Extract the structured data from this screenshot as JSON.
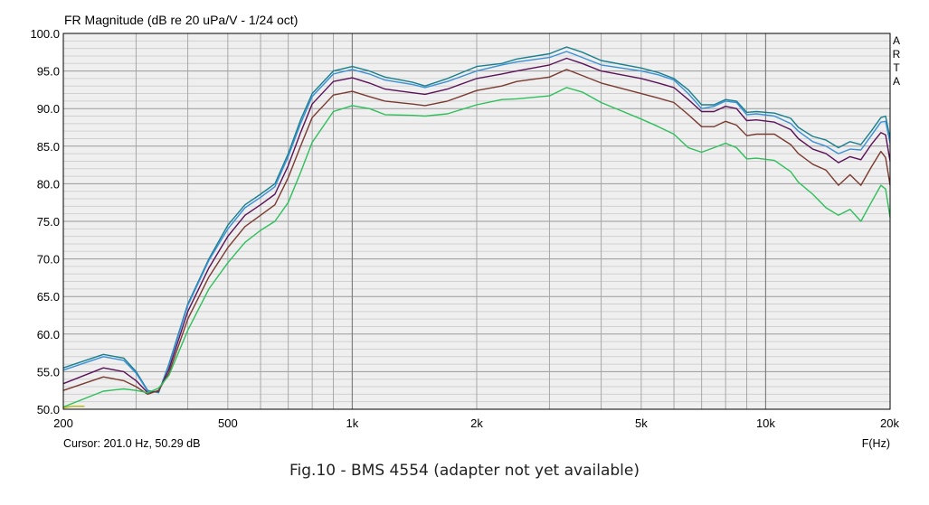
{
  "chart_data": {
    "type": "line",
    "title": "FR Magnitude (dB re 20 uPa/V - 1/24 oct)",
    "xlabel": "F(Hz)",
    "x_scale": "log",
    "xlim": [
      200,
      20000
    ],
    "ylim": [
      50,
      100
    ],
    "x_ticks": [
      {
        "value": 200,
        "label": "200"
      },
      {
        "value": 500,
        "label": "500"
      },
      {
        "value": 1000,
        "label": "1k"
      },
      {
        "value": 2000,
        "label": "2k"
      },
      {
        "value": 5000,
        "label": "5k"
      },
      {
        "value": 10000,
        "label": "10k"
      },
      {
        "value": 20000,
        "label": "20k"
      }
    ],
    "y_ticks": [
      "50.0",
      "55.0",
      "60.0",
      "65.0",
      "70.0",
      "75.0",
      "80.0",
      "85.0",
      "90.0",
      "95.0",
      "100.0"
    ],
    "y_tick_values": [
      50,
      55,
      60,
      65,
      70,
      75,
      80,
      85,
      90,
      95,
      100
    ],
    "grid": true,
    "cursor_text": "Cursor: 201.0 Hz, 50.29 dB",
    "watermark": [
      "A",
      "R",
      "T",
      "A"
    ],
    "caption": "Fig.10 - BMS 4554 (adapter not yet available)",
    "series": [
      {
        "color": "#1a7f8c",
        "points": [
          [
            200,
            55.5
          ],
          [
            250,
            57.3
          ],
          [
            280,
            56.8
          ],
          [
            300,
            55
          ],
          [
            320,
            52.5
          ],
          [
            340,
            52.2
          ],
          [
            360,
            56
          ],
          [
            400,
            64
          ],
          [
            450,
            70
          ],
          [
            500,
            74.5
          ],
          [
            550,
            77.2
          ],
          [
            600,
            78.6
          ],
          [
            650,
            80
          ],
          [
            700,
            84
          ],
          [
            750,
            88.5
          ],
          [
            800,
            92
          ],
          [
            900,
            95
          ],
          [
            1000,
            95.6
          ],
          [
            1100,
            95
          ],
          [
            1200,
            94.2
          ],
          [
            1400,
            93.5
          ],
          [
            1500,
            93
          ],
          [
            1700,
            94
          ],
          [
            2000,
            95.6
          ],
          [
            2300,
            96
          ],
          [
            2500,
            96.6
          ],
          [
            3000,
            97.3
          ],
          [
            3300,
            98.2
          ],
          [
            3600,
            97.5
          ],
          [
            4000,
            96.4
          ],
          [
            5000,
            95.4
          ],
          [
            5500,
            94.8
          ],
          [
            6000,
            94
          ],
          [
            6500,
            92.5
          ],
          [
            7000,
            90.5
          ],
          [
            7500,
            90.5
          ],
          [
            8000,
            91.2
          ],
          [
            8500,
            91
          ],
          [
            9000,
            89.5
          ],
          [
            9500,
            89.6
          ],
          [
            10500,
            89.4
          ],
          [
            11500,
            88.7
          ],
          [
            12000,
            87.5
          ],
          [
            13000,
            86.3
          ],
          [
            14000,
            85.8
          ],
          [
            15000,
            84.8
          ],
          [
            16000,
            85.6
          ],
          [
            17000,
            85.2
          ],
          [
            18000,
            87
          ],
          [
            19000,
            88.8
          ],
          [
            19500,
            89
          ],
          [
            20000,
            86
          ]
        ]
      },
      {
        "color": "#3a8fd8",
        "points": [
          [
            200,
            55.2
          ],
          [
            250,
            57
          ],
          [
            280,
            56.5
          ],
          [
            300,
            54.8
          ],
          [
            320,
            52.4
          ],
          [
            340,
            52.3
          ],
          [
            360,
            55.8
          ],
          [
            400,
            63.8
          ],
          [
            450,
            69.8
          ],
          [
            500,
            74
          ],
          [
            550,
            76.8
          ],
          [
            600,
            78.2
          ],
          [
            650,
            79.6
          ],
          [
            700,
            83.6
          ],
          [
            750,
            88
          ],
          [
            800,
            91.6
          ],
          [
            900,
            94.6
          ],
          [
            1000,
            95.2
          ],
          [
            1100,
            94.6
          ],
          [
            1200,
            93.8
          ],
          [
            1400,
            93.2
          ],
          [
            1500,
            92.8
          ],
          [
            1700,
            93.6
          ],
          [
            2000,
            95
          ],
          [
            2300,
            95.8
          ],
          [
            2500,
            96.2
          ],
          [
            3000,
            96.8
          ],
          [
            3300,
            97.6
          ],
          [
            3600,
            96.8
          ],
          [
            4000,
            95.8
          ],
          [
            5000,
            95
          ],
          [
            5500,
            94.5
          ],
          [
            6000,
            93.8
          ],
          [
            6500,
            92
          ],
          [
            7000,
            90
          ],
          [
            7500,
            90.3
          ],
          [
            8000,
            91
          ],
          [
            8500,
            90.8
          ],
          [
            9000,
            89.2
          ],
          [
            9500,
            89.3
          ],
          [
            10500,
            89
          ],
          [
            11500,
            88
          ],
          [
            12000,
            87
          ],
          [
            13000,
            85.6
          ],
          [
            14000,
            85
          ],
          [
            15000,
            84
          ],
          [
            16000,
            84.6
          ],
          [
            17000,
            84.5
          ],
          [
            18000,
            86.4
          ],
          [
            19000,
            88.2
          ],
          [
            19500,
            88.3
          ],
          [
            20000,
            85.4
          ]
        ]
      },
      {
        "color": "#5a1258",
        "points": [
          [
            200,
            53.4
          ],
          [
            250,
            55.5
          ],
          [
            280,
            55
          ],
          [
            300,
            53.8
          ],
          [
            320,
            52.2
          ],
          [
            340,
            52.4
          ],
          [
            360,
            55.3
          ],
          [
            400,
            63
          ],
          [
            450,
            68.8
          ],
          [
            500,
            73
          ],
          [
            550,
            75.8
          ],
          [
            600,
            77.2
          ],
          [
            650,
            78.6
          ],
          [
            700,
            82.4
          ],
          [
            750,
            86.8
          ],
          [
            800,
            90.6
          ],
          [
            900,
            93.6
          ],
          [
            1000,
            94.1
          ],
          [
            1100,
            93.4
          ],
          [
            1200,
            92.6
          ],
          [
            1400,
            92.1
          ],
          [
            1500,
            91.9
          ],
          [
            1700,
            92.6
          ],
          [
            2000,
            94
          ],
          [
            2300,
            94.6
          ],
          [
            2500,
            95
          ],
          [
            3000,
            95.8
          ],
          [
            3300,
            96.7
          ],
          [
            3600,
            96
          ],
          [
            4000,
            95
          ],
          [
            5000,
            94
          ],
          [
            5500,
            93.4
          ],
          [
            6000,
            92.8
          ],
          [
            6500,
            91.2
          ],
          [
            7000,
            89.6
          ],
          [
            7500,
            89.6
          ],
          [
            8000,
            90.3
          ],
          [
            8500,
            90
          ],
          [
            9000,
            88.4
          ],
          [
            9500,
            88.5
          ],
          [
            10500,
            88.2
          ],
          [
            11500,
            87.2
          ],
          [
            12000,
            86
          ],
          [
            13000,
            84.6
          ],
          [
            14000,
            84
          ],
          [
            15000,
            82.8
          ],
          [
            16000,
            83.6
          ],
          [
            17000,
            83.2
          ],
          [
            18000,
            85.2
          ],
          [
            19000,
            86.8
          ],
          [
            19500,
            86.5
          ],
          [
            20000,
            83
          ]
        ]
      },
      {
        "color": "#7a3a30",
        "points": [
          [
            200,
            52.5
          ],
          [
            250,
            54.3
          ],
          [
            280,
            53.8
          ],
          [
            300,
            53
          ],
          [
            320,
            52
          ],
          [
            340,
            52.5
          ],
          [
            360,
            54.8
          ],
          [
            400,
            62
          ],
          [
            450,
            67.6
          ],
          [
            500,
            71.5
          ],
          [
            550,
            74.3
          ],
          [
            600,
            75.8
          ],
          [
            650,
            77.2
          ],
          [
            700,
            80.8
          ],
          [
            750,
            85
          ],
          [
            800,
            88.8
          ],
          [
            900,
            91.8
          ],
          [
            1000,
            92.3
          ],
          [
            1100,
            91.6
          ],
          [
            1200,
            91
          ],
          [
            1400,
            90.6
          ],
          [
            1500,
            90.4
          ],
          [
            1700,
            91
          ],
          [
            2000,
            92.4
          ],
          [
            2300,
            93
          ],
          [
            2500,
            93.6
          ],
          [
            3000,
            94.2
          ],
          [
            3300,
            95.2
          ],
          [
            3600,
            94.4
          ],
          [
            4000,
            93.4
          ],
          [
            5000,
            92
          ],
          [
            5500,
            91.4
          ],
          [
            6000,
            90.8
          ],
          [
            6500,
            89.2
          ],
          [
            7000,
            87.6
          ],
          [
            7500,
            87.6
          ],
          [
            8000,
            88.3
          ],
          [
            8500,
            87.8
          ],
          [
            9000,
            86.4
          ],
          [
            9500,
            86.6
          ],
          [
            10500,
            86.6
          ],
          [
            11500,
            85.2
          ],
          [
            12000,
            84
          ],
          [
            13000,
            82.6
          ],
          [
            14000,
            81.8
          ],
          [
            15000,
            79.8
          ],
          [
            16000,
            81.2
          ],
          [
            17000,
            79.8
          ],
          [
            18000,
            82.2
          ],
          [
            19000,
            84.3
          ],
          [
            19500,
            83.5
          ],
          [
            20000,
            79.8
          ]
        ]
      },
      {
        "color": "#2dbf5a",
        "points": [
          [
            200,
            50.3
          ],
          [
            250,
            52.4
          ],
          [
            280,
            52.7
          ],
          [
            300,
            52.5
          ],
          [
            320,
            52.2
          ],
          [
            340,
            52.8
          ],
          [
            360,
            54.5
          ],
          [
            400,
            60.5
          ],
          [
            450,
            66
          ],
          [
            500,
            69.5
          ],
          [
            550,
            72.2
          ],
          [
            600,
            73.8
          ],
          [
            650,
            75
          ],
          [
            700,
            77.5
          ],
          [
            750,
            81.5
          ],
          [
            800,
            85.5
          ],
          [
            900,
            89.6
          ],
          [
            1000,
            90.4
          ],
          [
            1100,
            90
          ],
          [
            1200,
            89.2
          ],
          [
            1400,
            89.1
          ],
          [
            1500,
            89
          ],
          [
            1700,
            89.3
          ],
          [
            2000,
            90.5
          ],
          [
            2300,
            91.2
          ],
          [
            2500,
            91.3
          ],
          [
            3000,
            91.7
          ],
          [
            3300,
            92.8
          ],
          [
            3600,
            92.2
          ],
          [
            4000,
            90.8
          ],
          [
            5000,
            88.6
          ],
          [
            5500,
            87.6
          ],
          [
            6000,
            86.6
          ],
          [
            6500,
            84.8
          ],
          [
            7000,
            84.2
          ],
          [
            7500,
            84.8
          ],
          [
            8000,
            85.4
          ],
          [
            8500,
            84.8
          ],
          [
            9000,
            83.3
          ],
          [
            9500,
            83.4
          ],
          [
            10500,
            83.1
          ],
          [
            11500,
            81.6
          ],
          [
            12000,
            80.2
          ],
          [
            13000,
            78.6
          ],
          [
            14000,
            76.8
          ],
          [
            15000,
            75.8
          ],
          [
            16000,
            76.6
          ],
          [
            17000,
            75
          ],
          [
            18000,
            77.5
          ],
          [
            19000,
            79.8
          ],
          [
            19500,
            79.3
          ],
          [
            20000,
            75.5
          ]
        ]
      },
      {
        "color": "#b5b510",
        "points": [
          [
            200,
            50.2
          ],
          [
            210,
            50.4
          ],
          [
            225,
            50.4
          ]
        ]
      }
    ]
  }
}
